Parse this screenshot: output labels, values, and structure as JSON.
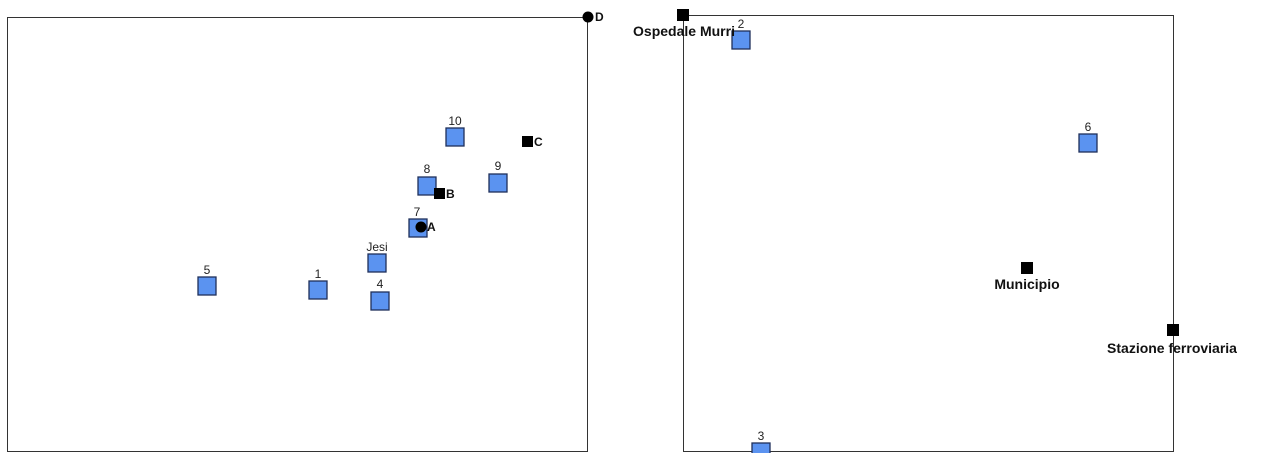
{
  "left_panel": {
    "sample_points": [
      {
        "id": "p1",
        "label": "1"
      },
      {
        "id": "p4",
        "label": "4"
      },
      {
        "id": "p5",
        "label": "5"
      },
      {
        "id": "pjesi",
        "label": "Jesi"
      },
      {
        "id": "p7",
        "label": "7"
      },
      {
        "id": "p8",
        "label": "8"
      },
      {
        "id": "p9",
        "label": "9"
      },
      {
        "id": "p10",
        "label": "10"
      }
    ],
    "reference_points": [
      {
        "id": "A",
        "label": "A",
        "shape": "circle"
      },
      {
        "id": "B",
        "label": "B",
        "shape": "square"
      },
      {
        "id": "C",
        "label": "C",
        "shape": "square"
      },
      {
        "id": "D",
        "label": "D",
        "shape": "circle"
      }
    ]
  },
  "right_panel": {
    "sample_points": [
      {
        "id": "p2",
        "label": "2"
      },
      {
        "id": "p3",
        "label": "3"
      },
      {
        "id": "p6",
        "label": "6"
      }
    ],
    "landmarks": [
      {
        "id": "ospedale",
        "label": "Ospedale Murri"
      },
      {
        "id": "municipio",
        "label": "Municipio"
      },
      {
        "id": "stazione",
        "label": "Stazione ferroviaria"
      }
    ]
  },
  "colors": {
    "sample_fill": "#5b93f0",
    "sample_stroke": "#1f2f5a",
    "marker": "#000000",
    "frame": "#333333"
  }
}
